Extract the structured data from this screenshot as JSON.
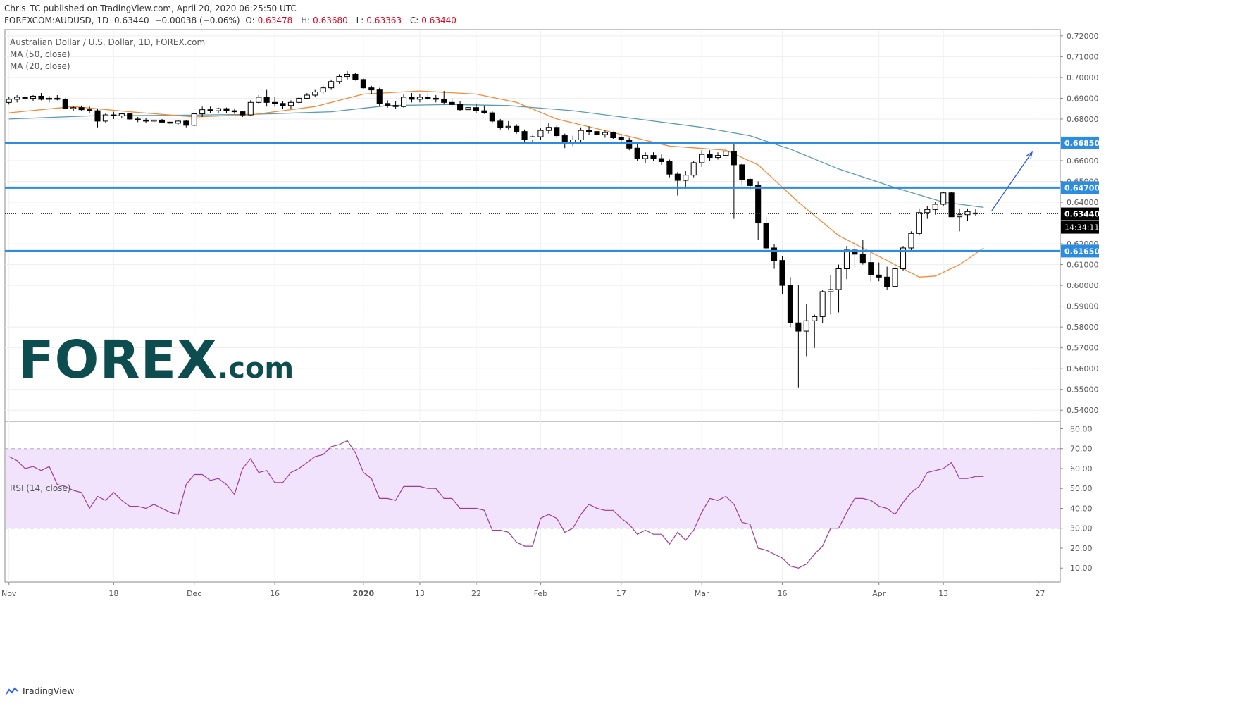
{
  "header": {
    "line1": "Chris_TC published on TradingView.com, April 20, 2020 06:25:50 UTC",
    "symbol": "FOREXCOM:AUDUSD, 1D",
    "last": "0.63440",
    "change": "−0.00038 (−0.06%)",
    "open_label": "O:",
    "open": "0.63478",
    "high_label": "H:",
    "high": "0.63680",
    "low_label": "L:",
    "low": "0.63363",
    "close_label": "C:",
    "close": "0.63440"
  },
  "legend": {
    "title": "Australian Dollar / U.S. Dollar, 1D, FOREX.com",
    "ma50": "MA (50, close)",
    "ma20": "MA (20, close)",
    "rsi": "RSI (14, close)"
  },
  "logo": {
    "main": "FOREX",
    "suffix": ".com"
  },
  "footer": {
    "brand": "TradingView"
  },
  "colors": {
    "up": "#ffffff",
    "down": "#000000",
    "ma50": "#5b9bb0",
    "ma20": "#f28b3a",
    "hline": "#2c8de0",
    "rsi": "#9c3c9c",
    "rsi_band": "#f1e3fb",
    "projection": "#2a5bd7"
  },
  "chart_data": [
    {
      "type": "candlestick",
      "title": "Australian Dollar / U.S. Dollar, 1D, FOREX.com",
      "ylim": [
        0.535,
        0.723
      ],
      "y_ticks": [
        "0.72000",
        "0.71000",
        "0.70000",
        "0.69000",
        "0.68000",
        "0.66000",
        "0.65000",
        "0.64000",
        "0.62000",
        "0.61000",
        "0.60000",
        "0.59000",
        "0.58000",
        "0.57000",
        "0.56000",
        "0.55000",
        "0.54000"
      ],
      "x_ticks": [
        {
          "label": "Nov",
          "bar": 0
        },
        {
          "label": "18",
          "bar": 13
        },
        {
          "label": "Dec",
          "bar": 23
        },
        {
          "label": "16",
          "bar": 33
        },
        {
          "label": "2020",
          "bar": 44
        },
        {
          "label": "13",
          "bar": 51
        },
        {
          "label": "22",
          "bar": 58
        },
        {
          "label": "Feb",
          "bar": 66
        },
        {
          "label": "17",
          "bar": 76
        },
        {
          "label": "Mar",
          "bar": 86
        },
        {
          "label": "16",
          "bar": 96
        },
        {
          "label": "Apr",
          "bar": 108
        },
        {
          "label": "13",
          "bar": 116
        },
        {
          "label": "27",
          "bar": 128
        }
      ],
      "bars_total": 131,
      "candles": [
        [
          0.688,
          0.6905,
          0.687,
          0.6895
        ],
        [
          0.6895,
          0.6915,
          0.688,
          0.6905
        ],
        [
          0.6905,
          0.6915,
          0.689,
          0.69
        ],
        [
          0.69,
          0.6915,
          0.6885,
          0.691
        ],
        [
          0.691,
          0.6925,
          0.689,
          0.6895
        ],
        [
          0.6895,
          0.691,
          0.688,
          0.69
        ],
        [
          0.69,
          0.6915,
          0.689,
          0.6895
        ],
        [
          0.6895,
          0.69,
          0.686,
          0.685
        ],
        [
          0.685,
          0.686,
          0.684,
          0.6855
        ],
        [
          0.6855,
          0.6865,
          0.684,
          0.6845
        ],
        [
          0.6845,
          0.686,
          0.683,
          0.684
        ],
        [
          0.684,
          0.685,
          0.676,
          0.679
        ],
        [
          0.679,
          0.683,
          0.678,
          0.682
        ],
        [
          0.682,
          0.6835,
          0.68,
          0.6815
        ],
        [
          0.6815,
          0.683,
          0.6805,
          0.6825
        ],
        [
          0.6825,
          0.683,
          0.6795,
          0.68
        ],
        [
          0.68,
          0.681,
          0.6785,
          0.6795
        ],
        [
          0.6795,
          0.6805,
          0.678,
          0.679
        ],
        [
          0.679,
          0.68,
          0.678,
          0.6795
        ],
        [
          0.6795,
          0.68,
          0.678,
          0.6785
        ],
        [
          0.6785,
          0.679,
          0.677,
          0.678
        ],
        [
          0.678,
          0.6795,
          0.677,
          0.679
        ],
        [
          0.679,
          0.6795,
          0.676,
          0.677
        ],
        [
          0.677,
          0.683,
          0.6765,
          0.6825
        ],
        [
          0.6825,
          0.686,
          0.681,
          0.6845
        ],
        [
          0.6845,
          0.686,
          0.683,
          0.684
        ],
        [
          0.684,
          0.6855,
          0.683,
          0.685
        ],
        [
          0.685,
          0.6855,
          0.683,
          0.684
        ],
        [
          0.684,
          0.685,
          0.6825,
          0.6835
        ],
        [
          0.6835,
          0.684,
          0.681,
          0.682
        ],
        [
          0.682,
          0.689,
          0.6815,
          0.688
        ],
        [
          0.688,
          0.6915,
          0.6875,
          0.6905
        ],
        [
          0.6905,
          0.694,
          0.686,
          0.688
        ],
        [
          0.688,
          0.6905,
          0.686,
          0.6875
        ],
        [
          0.6875,
          0.6885,
          0.685,
          0.6865
        ],
        [
          0.6865,
          0.689,
          0.685,
          0.688
        ],
        [
          0.688,
          0.6905,
          0.687,
          0.69
        ],
        [
          0.69,
          0.6925,
          0.6895,
          0.6915
        ],
        [
          0.6915,
          0.694,
          0.6905,
          0.693
        ],
        [
          0.693,
          0.696,
          0.692,
          0.695
        ],
        [
          0.695,
          0.699,
          0.694,
          0.698
        ],
        [
          0.698,
          0.7015,
          0.697,
          0.7005
        ],
        [
          0.7005,
          0.703,
          0.699,
          0.7015
        ],
        [
          0.7015,
          0.702,
          0.6985,
          0.699
        ],
        [
          0.699,
          0.6995,
          0.6945,
          0.695
        ],
        [
          0.695,
          0.696,
          0.692,
          0.694
        ],
        [
          0.694,
          0.695,
          0.686,
          0.6875
        ],
        [
          0.6875,
          0.689,
          0.6855,
          0.6865
        ],
        [
          0.6865,
          0.6885,
          0.685,
          0.686
        ],
        [
          0.686,
          0.692,
          0.6855,
          0.6905
        ],
        [
          0.6905,
          0.6925,
          0.688,
          0.6895
        ],
        [
          0.6895,
          0.692,
          0.688,
          0.6905
        ],
        [
          0.6905,
          0.6925,
          0.689,
          0.69
        ],
        [
          0.69,
          0.6915,
          0.688,
          0.6895
        ],
        [
          0.6895,
          0.6935,
          0.687,
          0.688
        ],
        [
          0.688,
          0.69,
          0.686,
          0.687
        ],
        [
          0.687,
          0.6885,
          0.684,
          0.6845
        ],
        [
          0.6845,
          0.688,
          0.684,
          0.6855
        ],
        [
          0.6855,
          0.6875,
          0.683,
          0.684
        ],
        [
          0.684,
          0.6865,
          0.6825,
          0.683
        ],
        [
          0.683,
          0.684,
          0.678,
          0.679
        ],
        [
          0.679,
          0.68,
          0.675,
          0.676
        ],
        [
          0.676,
          0.679,
          0.675,
          0.6765
        ],
        [
          0.6765,
          0.6775,
          0.673,
          0.674
        ],
        [
          0.674,
          0.675,
          0.668,
          0.67
        ],
        [
          0.67,
          0.672,
          0.668,
          0.6715
        ],
        [
          0.6715,
          0.6755,
          0.67,
          0.6745
        ],
        [
          0.6745,
          0.678,
          0.673,
          0.676
        ],
        [
          0.676,
          0.677,
          0.671,
          0.672
        ],
        [
          0.672,
          0.673,
          0.666,
          0.668
        ],
        [
          0.668,
          0.672,
          0.667,
          0.67
        ],
        [
          0.67,
          0.676,
          0.669,
          0.6745
        ],
        [
          0.6745,
          0.6765,
          0.6725,
          0.674
        ],
        [
          0.674,
          0.6755,
          0.6715,
          0.6725
        ],
        [
          0.6725,
          0.6745,
          0.671,
          0.6735
        ],
        [
          0.6735,
          0.674,
          0.6705,
          0.671
        ],
        [
          0.671,
          0.6725,
          0.669,
          0.67
        ],
        [
          0.67,
          0.671,
          0.665,
          0.666
        ],
        [
          0.666,
          0.668,
          0.66,
          0.661
        ],
        [
          0.661,
          0.664,
          0.659,
          0.6625
        ],
        [
          0.6625,
          0.664,
          0.66,
          0.661
        ],
        [
          0.661,
          0.663,
          0.658,
          0.6595
        ],
        [
          0.6595,
          0.6605,
          0.652,
          0.6535
        ],
        [
          0.6535,
          0.6545,
          0.6432,
          0.6505
        ],
        [
          0.6505,
          0.655,
          0.6465,
          0.653
        ],
        [
          0.653,
          0.66,
          0.652,
          0.659
        ],
        [
          0.659,
          0.665,
          0.657,
          0.663
        ],
        [
          0.663,
          0.665,
          0.66,
          0.6615
        ],
        [
          0.6615,
          0.664,
          0.6605,
          0.6625
        ],
        [
          0.6625,
          0.6665,
          0.661,
          0.6645
        ],
        [
          0.6645,
          0.6685,
          0.632,
          0.658
        ],
        [
          0.658,
          0.659,
          0.648,
          0.651
        ],
        [
          0.651,
          0.652,
          0.646,
          0.648
        ],
        [
          0.648,
          0.65,
          0.622,
          0.63
        ],
        [
          0.63,
          0.633,
          0.616,
          0.618
        ],
        [
          0.618,
          0.62,
          0.608,
          0.612
        ],
        [
          0.612,
          0.614,
          0.596,
          0.6
        ],
        [
          0.6,
          0.604,
          0.58,
          0.582
        ],
        [
          0.582,
          0.6,
          0.551,
          0.578
        ],
        [
          0.578,
          0.591,
          0.566,
          0.583
        ],
        [
          0.583,
          0.586,
          0.57,
          0.585
        ],
        [
          0.585,
          0.598,
          0.582,
          0.597
        ],
        [
          0.597,
          0.605,
          0.586,
          0.598
        ],
        [
          0.598,
          0.61,
          0.587,
          0.608
        ],
        [
          0.608,
          0.619,
          0.603,
          0.617
        ],
        [
          0.617,
          0.621,
          0.609,
          0.615
        ],
        [
          0.615,
          0.622,
          0.61,
          0.611
        ],
        [
          0.611,
          0.616,
          0.602,
          0.605
        ],
        [
          0.605,
          0.611,
          0.602,
          0.604
        ],
        [
          0.604,
          0.609,
          0.598,
          0.5995
        ],
        [
          0.5995,
          0.61,
          0.599,
          0.608
        ],
        [
          0.608,
          0.619,
          0.607,
          0.618
        ],
        [
          0.618,
          0.626,
          0.616,
          0.625
        ],
        [
          0.625,
          0.637,
          0.624,
          0.635
        ],
        [
          0.635,
          0.638,
          0.632,
          0.6365
        ],
        [
          0.6365,
          0.64,
          0.634,
          0.639
        ],
        [
          0.639,
          0.645,
          0.638,
          0.6445
        ],
        [
          0.6445,
          0.645,
          0.633,
          0.633
        ],
        [
          0.633,
          0.637,
          0.626,
          0.634
        ],
        [
          0.634,
          0.637,
          0.631,
          0.6355
        ],
        [
          0.6348,
          0.6368,
          0.6336,
          0.6344
        ]
      ],
      "ma50": [
        [
          0,
          0.68
        ],
        [
          10,
          0.6815
        ],
        [
          20,
          0.6818
        ],
        [
          30,
          0.6822
        ],
        [
          40,
          0.6835
        ],
        [
          47,
          0.6865
        ],
        [
          55,
          0.687
        ],
        [
          62,
          0.6865
        ],
        [
          70,
          0.684
        ],
        [
          78,
          0.68
        ],
        [
          86,
          0.676
        ],
        [
          92,
          0.672
        ],
        [
          97,
          0.6655
        ],
        [
          103,
          0.656
        ],
        [
          110,
          0.647
        ],
        [
          116,
          0.64
        ],
        [
          121,
          0.6375
        ]
      ],
      "ma20": [
        [
          0,
          0.683
        ],
        [
          8,
          0.686
        ],
        [
          15,
          0.6835
        ],
        [
          23,
          0.681
        ],
        [
          30,
          0.682
        ],
        [
          38,
          0.686
        ],
        [
          44,
          0.692
        ],
        [
          51,
          0.6935
        ],
        [
          58,
          0.692
        ],
        [
          63,
          0.688
        ],
        [
          68,
          0.68
        ],
        [
          75,
          0.6735
        ],
        [
          82,
          0.667
        ],
        [
          89,
          0.665
        ],
        [
          93,
          0.658
        ],
        [
          98,
          0.64
        ],
        [
          103,
          0.624
        ],
        [
          108,
          0.614
        ],
        [
          113,
          0.604
        ],
        [
          115,
          0.6045
        ],
        [
          118,
          0.61
        ],
        [
          121,
          0.618
        ]
      ],
      "horizontal_levels": [
        {
          "value": 0.6685,
          "label": "0.66850"
        },
        {
          "value": 0.647,
          "label": "0.64700"
        },
        {
          "value": 0.6165,
          "label": "0.61650"
        }
      ],
      "last_price": {
        "value": 0.6344,
        "label": "0.63440",
        "countdown": "14:34:11"
      },
      "projection_arrow": {
        "from": [
          122,
          0.636
        ],
        "to": [
          127,
          0.664
        ]
      }
    },
    {
      "type": "line",
      "title": "RSI (14, close)",
      "ylim": [
        3,
        83
      ],
      "y_ticks": [
        "80.00",
        "70.00",
        "60.00",
        "50.00",
        "40.00",
        "30.00",
        "20.00",
        "10.00"
      ],
      "band": [
        30,
        70
      ],
      "values": [
        66,
        64,
        60,
        61,
        59,
        61,
        52,
        51,
        49,
        48,
        40,
        46,
        44,
        48,
        44,
        41,
        41,
        40,
        42,
        40,
        38,
        37,
        52,
        57,
        57,
        54,
        55,
        52,
        47,
        60,
        65,
        58,
        59,
        53,
        53,
        58,
        60,
        63,
        66,
        67,
        71,
        72,
        74,
        68,
        58,
        55,
        45,
        45,
        44,
        51,
        51,
        51,
        50,
        50,
        45,
        45,
        40,
        40,
        40,
        39,
        29,
        29,
        28,
        23,
        21,
        21,
        35,
        37,
        35,
        28,
        30,
        37,
        42,
        40,
        39,
        39,
        35,
        32,
        27,
        29,
        27,
        27,
        22,
        28,
        24,
        29,
        38,
        45,
        44,
        46,
        42,
        33,
        32,
        20,
        19,
        17,
        15,
        11,
        10,
        12,
        17,
        21,
        30,
        30,
        38,
        45,
        45,
        44,
        41,
        40,
        37,
        43,
        48,
        51,
        58,
        59,
        60,
        63,
        55,
        55,
        56,
        56
      ]
    }
  ]
}
